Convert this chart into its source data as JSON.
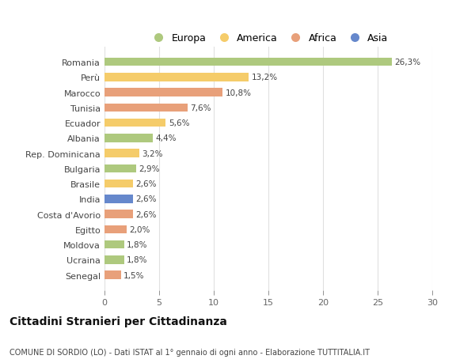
{
  "countries": [
    "Romania",
    "Perù",
    "Marocco",
    "Tunisia",
    "Ecuador",
    "Albania",
    "Rep. Dominicana",
    "Bulgaria",
    "Brasile",
    "India",
    "Costa d'Avorio",
    "Egitto",
    "Moldova",
    "Ucraina",
    "Senegal"
  ],
  "values": [
    26.3,
    13.2,
    10.8,
    7.6,
    5.6,
    4.4,
    3.2,
    2.9,
    2.6,
    2.6,
    2.6,
    2.0,
    1.8,
    1.8,
    1.5
  ],
  "labels": [
    "26,3%",
    "13,2%",
    "10,8%",
    "7,6%",
    "5,6%",
    "4,4%",
    "3,2%",
    "2,9%",
    "2,6%",
    "2,6%",
    "2,6%",
    "2,0%",
    "1,8%",
    "1,8%",
    "1,5%"
  ],
  "colors": [
    "#aec97e",
    "#f5cc6a",
    "#e8a07a",
    "#e8a07a",
    "#f5cc6a",
    "#aec97e",
    "#f5cc6a",
    "#aec97e",
    "#f5cc6a",
    "#6688cc",
    "#e8a07a",
    "#e8a07a",
    "#aec97e",
    "#aec97e",
    "#e8a07a"
  ],
  "legend_labels": [
    "Europa",
    "America",
    "Africa",
    "Asia"
  ],
  "legend_colors": [
    "#aec97e",
    "#f5cc6a",
    "#e8a07a",
    "#6688cc"
  ],
  "title": "Cittadini Stranieri per Cittadinanza",
  "subtitle": "COMUNE DI SORDIO (LO) - Dati ISTAT al 1° gennaio di ogni anno - Elaborazione TUTTITALIA.IT",
  "xlim": [
    0,
    30
  ],
  "xticks": [
    0,
    5,
    10,
    15,
    20,
    25,
    30
  ],
  "background_color": "#ffffff",
  "grid_color": "#e0e0e0"
}
